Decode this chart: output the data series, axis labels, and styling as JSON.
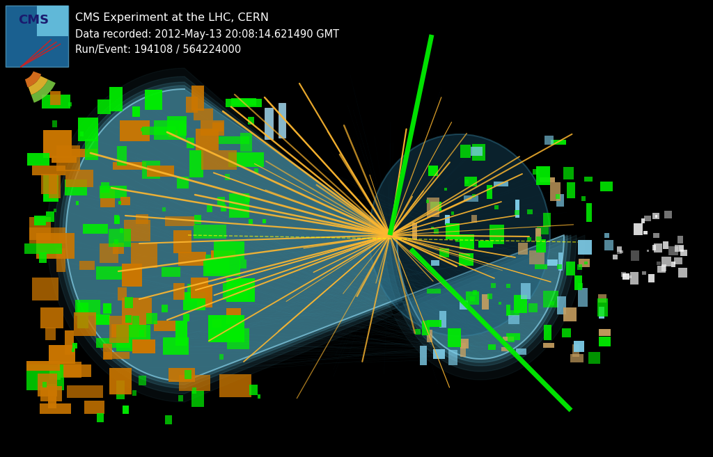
{
  "title_line1": "CMS Experiment at the LHC, CERN",
  "title_line2": "Data recorded: 2012-May-13 20:08:14.621490 GMT",
  "title_line3": "Run/Event: 194108 / 564224000",
  "background_color": "#000000",
  "detector_fill": "#5bb8d4",
  "detector_edge": "#7fd4ea",
  "track_color": "#FFB830",
  "green_color": "#00EE00",
  "orange_color": "#CC7700",
  "light_blue": "#a8d8ea",
  "white_color": "#FFFFFF",
  "text_color": "#FFFFFF",
  "figsize": [
    10.24,
    6.57
  ],
  "dpi": 100,
  "seed": 42
}
